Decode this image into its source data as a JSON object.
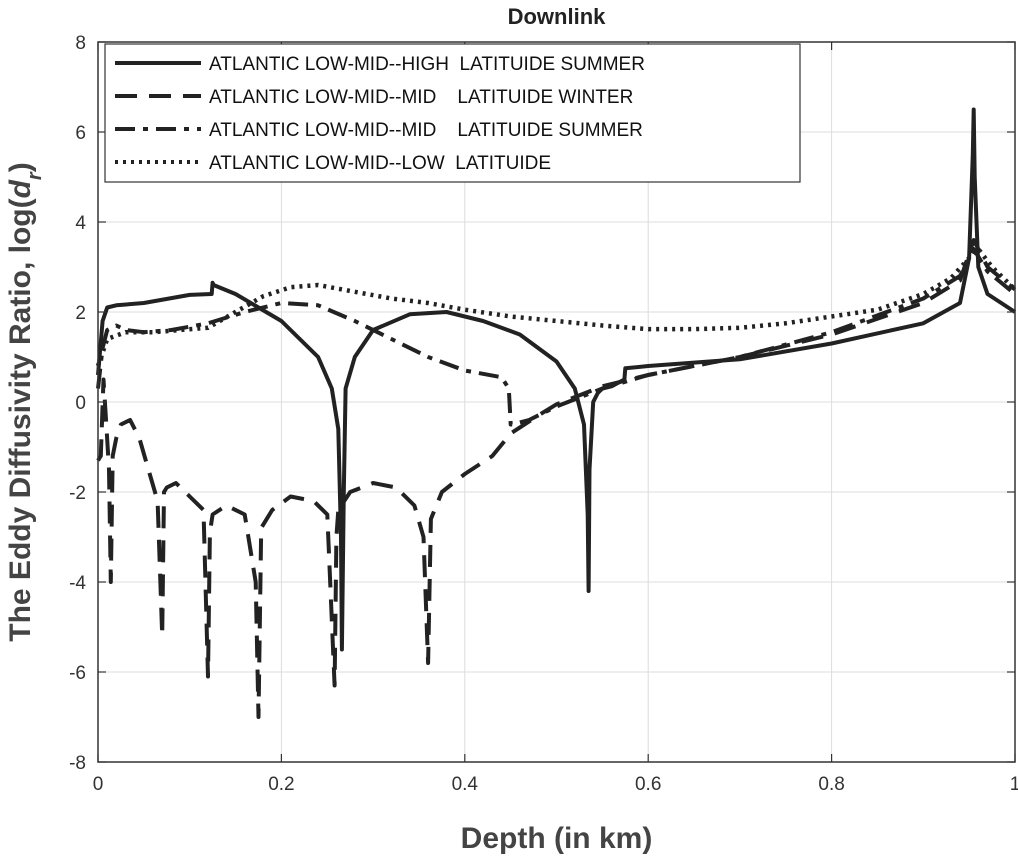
{
  "chart_data": {
    "type": "line",
    "title": "Downlink",
    "xlabel": "Depth (in km)",
    "ylabel": "The Eddy Diffusivity Ratio, log(d_r)",
    "ylabel_parts": {
      "prefix": "The Eddy Diffusivity Ratio, log(",
      "var": "d",
      "sub": "r",
      "suffix": ")"
    },
    "xlim": [
      0,
      1
    ],
    "ylim": [
      -8,
      8
    ],
    "xticks": [
      0,
      0.2,
      0.4,
      0.6,
      0.8,
      1
    ],
    "xtick_labels": [
      "0",
      "0.2",
      "0.4",
      "0.6",
      "0.8",
      "1"
    ],
    "yticks": [
      -8,
      -6,
      -4,
      -2,
      0,
      2,
      4,
      6,
      8
    ],
    "ytick_labels": [
      "-8",
      "-6",
      "-4",
      "-2",
      "0",
      "2",
      "4",
      "6",
      "8"
    ],
    "grid": true,
    "legend_position": "top-left",
    "series": [
      {
        "name": "ATLANTIC LOW-MID--HIGH  LATITUIDE SUMMER",
        "style": "solid",
        "x": [
          0.0,
          0.005,
          0.01,
          0.02,
          0.05,
          0.1,
          0.124,
          0.125,
          0.126,
          0.15,
          0.2,
          0.24,
          0.255,
          0.262,
          0.265,
          0.266,
          0.268,
          0.27,
          0.28,
          0.3,
          0.34,
          0.38,
          0.42,
          0.46,
          0.5,
          0.52,
          0.53,
          0.534,
          0.535,
          0.536,
          0.54,
          0.545,
          0.55,
          0.56,
          0.574,
          0.575,
          0.6,
          0.7,
          0.8,
          0.9,
          0.94,
          0.95,
          0.954,
          0.955,
          0.956,
          0.96,
          0.97,
          1.0
        ],
        "y": [
          0.6,
          1.8,
          2.1,
          2.15,
          2.2,
          2.38,
          2.4,
          2.65,
          2.6,
          2.4,
          1.8,
          1.0,
          0.3,
          -0.6,
          -3.0,
          -5.5,
          -2.0,
          0.3,
          1.0,
          1.6,
          1.95,
          2.0,
          1.8,
          1.5,
          0.9,
          0.3,
          -0.5,
          -2.5,
          -4.2,
          -1.5,
          0.0,
          0.2,
          0.3,
          0.35,
          0.5,
          0.75,
          0.8,
          0.95,
          1.3,
          1.75,
          2.2,
          3.2,
          5.5,
          6.5,
          5.0,
          3.0,
          2.4,
          2.0
        ]
      },
      {
        "name": "ATLANTIC LOW-MID--MID    LATITUIDE WINTER",
        "style": "dashed",
        "x": [
          0.0,
          0.003,
          0.006,
          0.009,
          0.012,
          0.014,
          0.016,
          0.02,
          0.025,
          0.035,
          0.045,
          0.055,
          0.065,
          0.07,
          0.072,
          0.075,
          0.085,
          0.1,
          0.115,
          0.12,
          0.122,
          0.125,
          0.14,
          0.16,
          0.172,
          0.175,
          0.178,
          0.19,
          0.21,
          0.235,
          0.25,
          0.258,
          0.26,
          0.262,
          0.275,
          0.3,
          0.325,
          0.345,
          0.355,
          0.36,
          0.363,
          0.375,
          0.4,
          0.43,
          0.45,
          0.48,
          0.5,
          0.55,
          0.6,
          0.7,
          0.8,
          0.9,
          0.94,
          0.955,
          0.97,
          1.0
        ],
        "y": [
          -1.3,
          -1.2,
          0.5,
          -0.5,
          -1.5,
          -4.0,
          -1.2,
          -0.8,
          -0.5,
          -0.4,
          -0.8,
          -1.5,
          -2.2,
          -5.2,
          -2.0,
          -1.9,
          -1.8,
          -2.1,
          -2.4,
          -6.1,
          -2.9,
          -2.5,
          -2.3,
          -2.5,
          -4.0,
          -7.0,
          -2.8,
          -2.4,
          -2.1,
          -2.2,
          -2.5,
          -6.3,
          -3.0,
          -2.4,
          -2.0,
          -1.8,
          -1.9,
          -2.3,
          -3.0,
          -5.8,
          -2.6,
          -2.0,
          -1.6,
          -1.2,
          -0.7,
          -0.3,
          -0.05,
          0.35,
          0.6,
          1.0,
          1.5,
          2.2,
          2.7,
          3.6,
          3.0,
          2.5
        ]
      },
      {
        "name": "ATLANTIC LOW-MID--MID    LATITUIDE SUMMER",
        "style": "dashdot",
        "x": [
          0.0,
          0.005,
          0.01,
          0.02,
          0.03,
          0.05,
          0.08,
          0.12,
          0.16,
          0.2,
          0.24,
          0.28,
          0.32,
          0.36,
          0.4,
          0.44,
          0.448,
          0.45,
          0.452,
          0.47,
          0.5,
          0.55,
          0.6,
          0.7,
          0.8,
          0.9,
          0.94,
          0.955,
          0.97,
          1.0
        ],
        "y": [
          0.3,
          1.2,
          1.6,
          1.7,
          1.6,
          1.55,
          1.6,
          1.75,
          2.0,
          2.2,
          2.15,
          1.8,
          1.4,
          1.0,
          0.7,
          0.55,
          0.3,
          -0.5,
          -0.5,
          -0.4,
          -0.1,
          0.3,
          0.6,
          1.0,
          1.55,
          2.3,
          2.8,
          3.4,
          2.9,
          2.4
        ]
      },
      {
        "name": "ATLANTIC LOW-MID--LOW  LATITUIDE",
        "style": "dotted",
        "x": [
          0.0,
          0.01,
          0.03,
          0.06,
          0.09,
          0.12,
          0.15,
          0.18,
          0.21,
          0.24,
          0.28,
          0.32,
          0.36,
          0.4,
          0.45,
          0.5,
          0.55,
          0.6,
          0.65,
          0.7,
          0.75,
          0.8,
          0.85,
          0.9,
          0.93,
          0.95,
          0.96,
          0.975,
          1.0
        ],
        "y": [
          0.8,
          1.4,
          1.55,
          1.55,
          1.6,
          1.65,
          2.0,
          2.35,
          2.55,
          2.6,
          2.45,
          2.3,
          2.2,
          2.05,
          1.9,
          1.8,
          1.7,
          1.62,
          1.62,
          1.65,
          1.75,
          1.9,
          2.05,
          2.4,
          2.75,
          3.2,
          3.4,
          3.0,
          2.5
        ]
      }
    ]
  }
}
